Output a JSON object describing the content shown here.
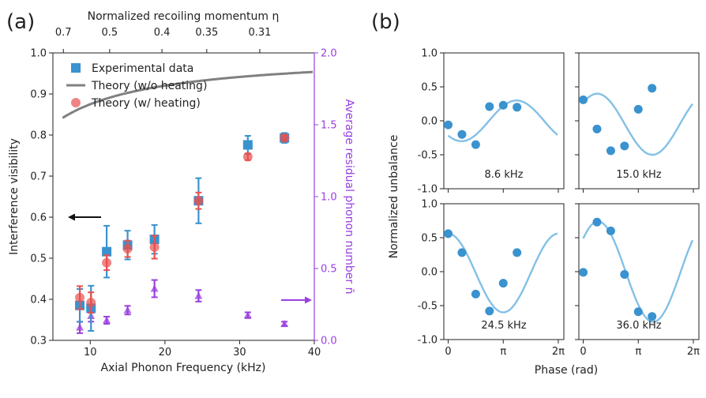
{
  "panel_labels": {
    "a": "(a)",
    "b": "(b)"
  },
  "chart_data": [
    {
      "type": "scatter",
      "title": "",
      "xlabel": "Axial Phonon Frequency (kHz)",
      "ylabel": "Interference visibility",
      "y2label": "Average residual phonon number n̄",
      "top_xlabel": "Normalized recoiling momentum η",
      "xlim": [
        5,
        40
      ],
      "ylim": [
        0.3,
        1.0
      ],
      "y2lim": [
        0.0,
        2.0
      ],
      "x_ticks": [
        "10",
        "20",
        "30",
        "40"
      ],
      "y_ticks": [
        "0.3",
        "0.4",
        "0.5",
        "0.6",
        "0.7",
        "0.8",
        "0.9",
        "1.0"
      ],
      "y2_ticks": [
        "0.0",
        "0.5",
        "1.0",
        "1.5",
        "2.0"
      ],
      "top_ticks": [
        {
          "label": "0.7",
          "freq": 6.4
        },
        {
          "label": "0.5",
          "freq": 12.6
        },
        {
          "label": "0.4",
          "freq": 19.6
        },
        {
          "label": "0.35",
          "freq": 25.6
        },
        {
          "label": "0.31",
          "freq": 32.7
        }
      ],
      "legend": {
        "position": "top-left",
        "entries": [
          "Experimental data",
          "Theory (w/o heating)",
          "Theory (w/ heating)"
        ]
      },
      "series": [
        {
          "name": "Experimental data",
          "color": "#3a92cf",
          "points": [
            {
              "x": 8.6,
              "y": 0.385,
              "err": 0.04
            },
            {
              "x": 10.1,
              "y": 0.378,
              "err": 0.055
            },
            {
              "x": 12.2,
              "y": 0.516,
              "err": 0.063
            },
            {
              "x": 15.0,
              "y": 0.532,
              "err": 0.035
            },
            {
              "x": 18.6,
              "y": 0.546,
              "err": 0.035
            },
            {
              "x": 24.5,
              "y": 0.64,
              "err": 0.055
            },
            {
              "x": 31.1,
              "y": 0.776,
              "err": 0.022
            },
            {
              "x": 36.0,
              "y": 0.793,
              "err": 0.012
            }
          ]
        },
        {
          "name": "Theory (w/o heating)",
          "color": "#808080",
          "curve": "1 - 2.2 / (f/kHz + 7.6)"
        },
        {
          "name": "Theory (w/ heating)",
          "color": "#e8504e",
          "points": [
            {
              "x": 8.6,
              "y": 0.404,
              "err": 0.028
            },
            {
              "x": 10.1,
              "y": 0.392,
              "err": 0.025
            },
            {
              "x": 12.2,
              "y": 0.489,
              "err": 0.018
            },
            {
              "x": 15.0,
              "y": 0.523,
              "err": 0.02
            },
            {
              "x": 18.6,
              "y": 0.527,
              "err": 0.028
            },
            {
              "x": 24.5,
              "y": 0.64,
              "err": 0.02
            },
            {
              "x": 31.1,
              "y": 0.747,
              "err": 0.008
            },
            {
              "x": 36.0,
              "y": 0.793,
              "err": 0.006
            }
          ]
        },
        {
          "name": "Average residual phonon number",
          "axis": "right",
          "color": "#9a40e0",
          "points": [
            {
              "x": 8.6,
              "y": 0.09,
              "err": 0.04
            },
            {
              "x": 10.1,
              "y": 0.17,
              "err": 0.04
            },
            {
              "x": 12.2,
              "y": 0.14,
              "err": 0.025
            },
            {
              "x": 15.0,
              "y": 0.21,
              "err": 0.03
            },
            {
              "x": 18.6,
              "y": 0.36,
              "err": 0.06
            },
            {
              "x": 24.5,
              "y": 0.31,
              "err": 0.04
            },
            {
              "x": 31.1,
              "y": 0.175,
              "err": 0.02
            },
            {
              "x": 36.0,
              "y": 0.115,
              "err": 0.015
            }
          ]
        }
      ],
      "annotations": [
        {
          "text": "arrow pointing to left axis",
          "near_value": 0.6
        },
        {
          "text": "arrow pointing to right axis",
          "near_value": 0.28
        }
      ]
    },
    {
      "type": "scatter",
      "grid": "2x2",
      "xlabel": "Phase (rad)",
      "ylabel": "Normalized unbalance",
      "xlim": [
        -0.25,
        6.6
      ],
      "ylim": [
        -1.0,
        1.0
      ],
      "x_ticks": [
        "0",
        "π",
        "2π"
      ],
      "y_ticks": [
        "-1.0",
        "-0.5",
        "0.0",
        "0.5",
        "1.0"
      ],
      "panels": [
        {
          "label": "8.6 kHz",
          "fit": {
            "offset": 0.0,
            "amplitude": 0.3,
            "phase": 3.9
          },
          "points": [
            [
              0.0,
              -0.06
            ],
            [
              0.785,
              -0.2
            ],
            [
              1.571,
              -0.35
            ],
            [
              2.356,
              0.21
            ],
            [
              3.142,
              0.23
            ],
            [
              3.927,
              0.2
            ]
          ]
        },
        {
          "label": "15.0 kHz",
          "fit": {
            "offset": -0.05,
            "amplitude": 0.45,
            "phase": 0.8
          },
          "points": [
            [
              0.0,
              0.31
            ],
            [
              0.785,
              -0.12
            ],
            [
              1.571,
              -0.44
            ],
            [
              2.356,
              -0.37
            ],
            [
              3.142,
              0.17
            ],
            [
              3.927,
              0.48
            ]
          ]
        },
        {
          "label": "24.5 kHz",
          "fit": {
            "offset": -0.02,
            "amplitude": 0.58,
            "phase": 0.0
          },
          "points": [
            [
              0.0,
              0.56
            ],
            [
              0.785,
              0.28
            ],
            [
              1.571,
              -0.33
            ],
            [
              2.356,
              -0.58
            ],
            [
              3.142,
              -0.17
            ],
            [
              3.927,
              0.28
            ]
          ]
        },
        {
          "label": "36.0 kHz",
          "fit": {
            "offset": 0.0,
            "amplitude": 0.74,
            "phase": 0.85
          },
          "points": [
            [
              0.0,
              -0.01
            ],
            [
              0.785,
              0.73
            ],
            [
              1.571,
              0.6
            ],
            [
              2.356,
              -0.04
            ],
            [
              3.142,
              -0.59
            ],
            [
              3.927,
              -0.66
            ]
          ]
        }
      ]
    }
  ]
}
